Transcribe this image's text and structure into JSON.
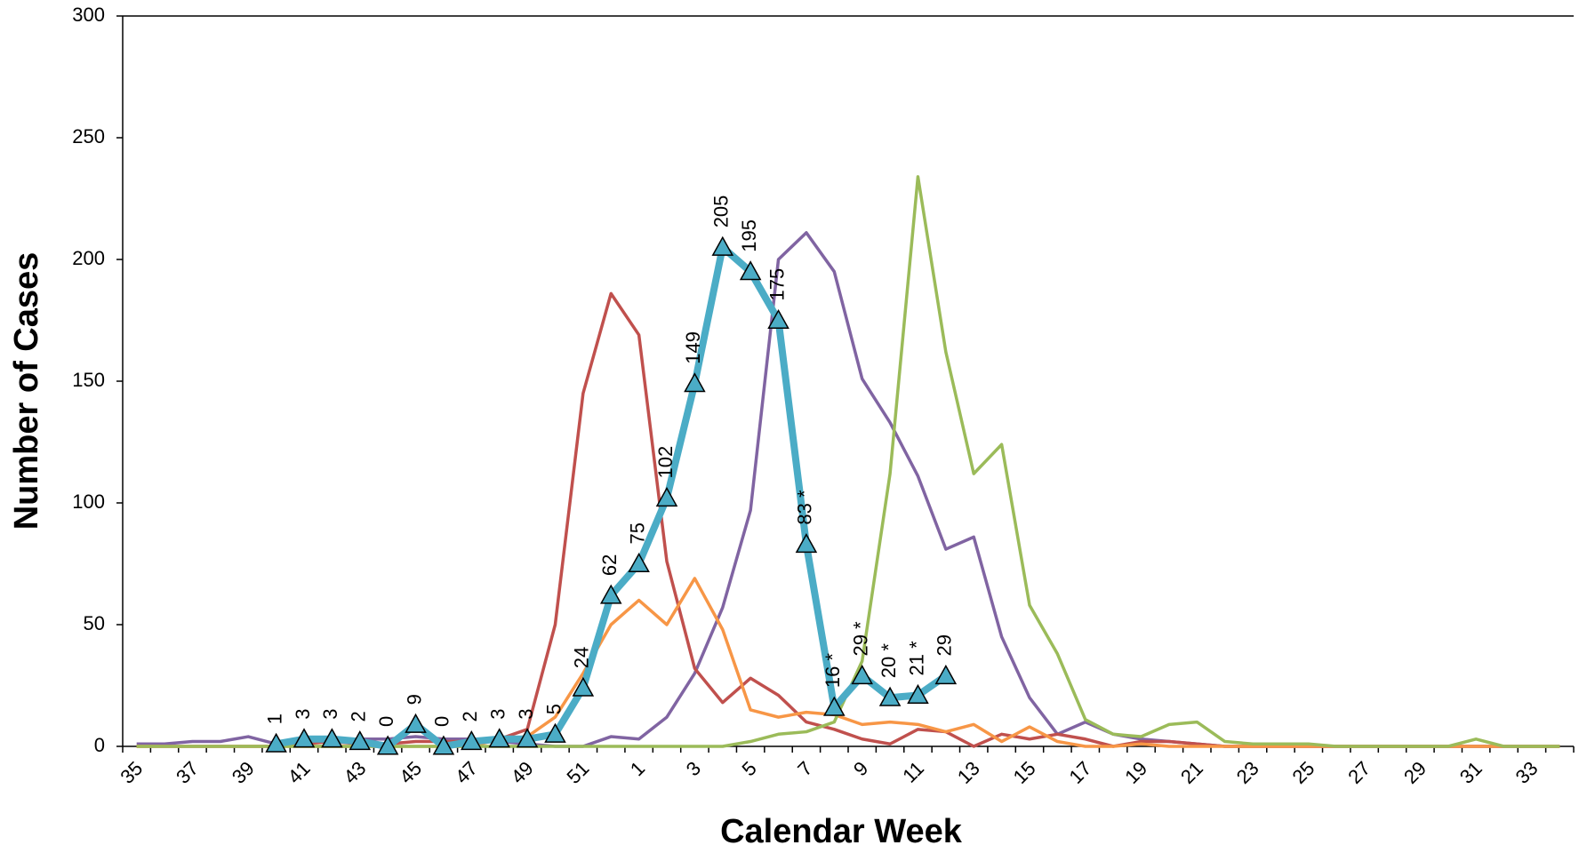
{
  "chart_data": {
    "type": "line",
    "xlabel": "Calendar Week",
    "ylabel": "Number of Cases",
    "categories": [
      "35",
      null,
      "37",
      null,
      "39",
      null,
      "41",
      null,
      "43",
      null,
      "45",
      null,
      "47",
      null,
      "49",
      null,
      "51",
      null,
      "1",
      null,
      "3",
      null,
      "5",
      null,
      "7",
      null,
      "9",
      null,
      "11",
      null,
      "13",
      null,
      "15",
      null,
      "17",
      null,
      "19",
      null,
      "21",
      null,
      "23",
      null,
      "25",
      null,
      "27",
      null,
      "29",
      null,
      "31",
      null,
      "33",
      null
    ],
    "ylim": [
      0,
      300
    ],
    "yticks": [
      0,
      50,
      100,
      150,
      200,
      250,
      300
    ],
    "grid": false,
    "series": [
      {
        "color": "#8064a2",
        "values": [
          1,
          1,
          2,
          2,
          4,
          1,
          2,
          2,
          3,
          3,
          4,
          3,
          3,
          2,
          1,
          0,
          0,
          4,
          3,
          12,
          30,
          57,
          97,
          200,
          211,
          195,
          151,
          133,
          111,
          81,
          86,
          45,
          20,
          5,
          10,
          5,
          3,
          2,
          1,
          0,
          0,
          0,
          0,
          0,
          0,
          0,
          0,
          0,
          0,
          0,
          0,
          0
        ]
      },
      {
        "color": "#c0504d",
        "values": [
          0,
          0,
          0,
          0,
          0,
          0,
          1,
          2,
          1,
          1,
          2,
          2,
          2,
          3,
          7,
          50,
          145,
          186,
          169,
          76,
          32,
          18,
          28,
          21,
          10,
          7,
          3,
          1,
          7,
          6,
          0,
          5,
          3,
          5,
          3,
          0,
          2,
          2,
          1,
          0,
          0,
          0,
          0,
          0,
          0,
          0,
          0,
          0,
          0,
          0,
          0,
          0
        ]
      },
      {
        "color": "#f79646",
        "values": [
          0,
          0,
          0,
          0,
          0,
          0,
          0,
          0,
          0,
          0,
          0,
          0,
          0,
          3,
          4,
          12,
          30,
          50,
          60,
          50,
          69,
          48,
          15,
          12,
          14,
          13,
          9,
          10,
          9,
          6,
          9,
          2,
          8,
          2,
          0,
          0,
          1,
          0,
          0,
          0,
          0,
          0,
          0,
          0,
          0,
          0,
          0,
          0,
          0,
          0,
          0,
          0
        ]
      },
      {
        "color": "#9bbb59",
        "values": [
          0,
          0,
          0,
          0,
          0,
          0,
          0,
          0,
          0,
          0,
          0,
          0,
          0,
          0,
          0,
          0,
          0,
          0,
          0,
          0,
          0,
          0,
          2,
          5,
          6,
          10,
          35,
          112,
          234,
          162,
          112,
          124,
          58,
          38,
          11,
          5,
          4,
          9,
          10,
          2,
          1,
          1,
          1,
          0,
          0,
          0,
          0,
          0,
          3,
          0,
          0,
          0
        ]
      },
      {
        "color": "#4bacc6",
        "marker": "triangle",
        "values": [
          null,
          null,
          null,
          null,
          null,
          1,
          3,
          3,
          2,
          0,
          9,
          0,
          2,
          3,
          3,
          5,
          24,
          62,
          75,
          102,
          149,
          205,
          195,
          175,
          83,
          16,
          29,
          20,
          21,
          29,
          null,
          null,
          null,
          null,
          null,
          null,
          null,
          null,
          null,
          null,
          null,
          null,
          null,
          null,
          null,
          null,
          null,
          null,
          null,
          null,
          null,
          null
        ],
        "value_labels": [
          null,
          null,
          null,
          null,
          null,
          "1",
          "3",
          "3",
          "2",
          "0",
          "9",
          "0",
          "2",
          "3",
          "3",
          "5",
          "24",
          "62",
          "75",
          "102",
          "149",
          "205",
          "195",
          "175",
          "83 *",
          "16 *",
          "29 *",
          "20 *",
          "21 *",
          "29",
          null,
          null,
          null,
          null,
          null,
          null,
          null,
          null,
          null,
          null,
          null,
          null,
          null,
          null,
          null,
          null,
          null,
          null,
          null,
          null,
          null,
          null
        ]
      }
    ]
  }
}
